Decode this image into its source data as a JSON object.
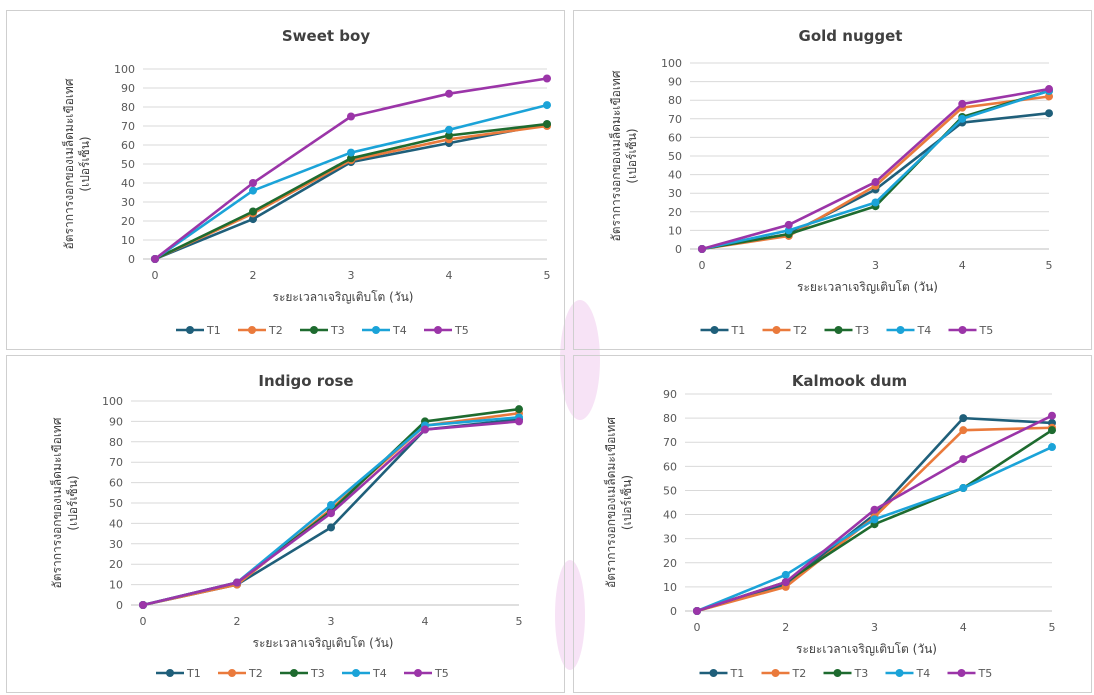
{
  "colors": {
    "T1": "#1f5f7a",
    "T2": "#ea7a3c",
    "T3": "#1e6b2f",
    "T4": "#1ba3d8",
    "T5": "#9b35a8"
  },
  "chart_data": [
    {
      "type": "line",
      "title": "Sweet boy",
      "xlabel": "ระยะเวลาเจริญเติบโต (วัน)",
      "ylabel": [
        "อัตราการงอกของเมล็ดมะเขือเทศ",
        "(เปอร์เซ็น)"
      ],
      "x": [
        0,
        2,
        3,
        4,
        5
      ],
      "ylim": [
        0,
        100
      ],
      "ystep": 10,
      "grid": true,
      "legend": "bottom",
      "series": [
        {
          "name": "T1",
          "values": [
            0,
            21,
            51,
            61,
            71
          ]
        },
        {
          "name": "T2",
          "values": [
            0,
            24,
            52,
            63,
            70
          ]
        },
        {
          "name": "T3",
          "values": [
            0,
            25,
            53,
            65,
            71
          ]
        },
        {
          "name": "T4",
          "values": [
            0,
            36,
            56,
            68,
            81
          ]
        },
        {
          "name": "T5",
          "values": [
            0,
            40,
            75,
            87,
            95
          ]
        }
      ]
    },
    {
      "type": "line",
      "title": "Gold nugget",
      "xlabel": "ระยะเวลาเจริญเติบโต (วัน)",
      "ylabel": [
        "อัตราการงอกของเมล็ดมะเขือเทศ",
        "(เปอร์เซ็น)"
      ],
      "x": [
        0,
        2,
        3,
        4,
        5
      ],
      "ylim": [
        0,
        100
      ],
      "ystep": 10,
      "grid": true,
      "legend": "bottom",
      "series": [
        {
          "name": "T1",
          "values": [
            0,
            8,
            32,
            68,
            73
          ]
        },
        {
          "name": "T2",
          "values": [
            0,
            7,
            34,
            76,
            82
          ]
        },
        {
          "name": "T3",
          "values": [
            0,
            8,
            23,
            71,
            85
          ]
        },
        {
          "name": "T4",
          "values": [
            0,
            10,
            25,
            70,
            85
          ]
        },
        {
          "name": "T5",
          "values": [
            0,
            13,
            36,
            78,
            86
          ]
        }
      ]
    },
    {
      "type": "line",
      "title": "Indigo rose",
      "xlabel": "ระยะเวลาเจริญเติบโต (วัน)",
      "ylabel": [
        "อัตราการงอกของเมล็ดมะเขือเทศ",
        "(เปอร์เซ็น)"
      ],
      "x": [
        0,
        2,
        3,
        4,
        5
      ],
      "ylim": [
        0,
        100
      ],
      "ystep": 10,
      "grid": true,
      "legend": "bottom",
      "series": [
        {
          "name": "T1",
          "values": [
            0,
            10,
            38,
            86,
            91
          ]
        },
        {
          "name": "T2",
          "values": [
            0,
            10,
            47,
            88,
            94
          ]
        },
        {
          "name": "T3",
          "values": [
            0,
            11,
            46,
            90,
            96
          ]
        },
        {
          "name": "T4",
          "values": [
            0,
            11,
            49,
            88,
            92
          ]
        },
        {
          "name": "T5",
          "values": [
            0,
            11,
            45,
            86,
            90
          ]
        }
      ]
    },
    {
      "type": "line",
      "title": "Kalmook dum",
      "xlabel": "ระยะเวลาเจริญเติบโต (วัน)",
      "ylabel": [
        "อัตราการงอกของเมล็ดมะเขือเทศ",
        "(เปอร์เซ็น)"
      ],
      "x": [
        0,
        2,
        3,
        4,
        5
      ],
      "ylim": [
        0,
        90
      ],
      "ystep": 10,
      "grid": true,
      "legend": "bottom",
      "series": [
        {
          "name": "T1",
          "values": [
            0,
            11,
            40,
            80,
            78
          ]
        },
        {
          "name": "T2",
          "values": [
            0,
            10,
            39,
            75,
            76
          ]
        },
        {
          "name": "T3",
          "values": [
            0,
            12,
            36,
            51,
            75
          ]
        },
        {
          "name": "T4",
          "values": [
            0,
            15,
            38,
            51,
            68
          ]
        },
        {
          "name": "T5",
          "values": [
            0,
            12,
            42,
            63,
            81
          ]
        }
      ]
    }
  ]
}
